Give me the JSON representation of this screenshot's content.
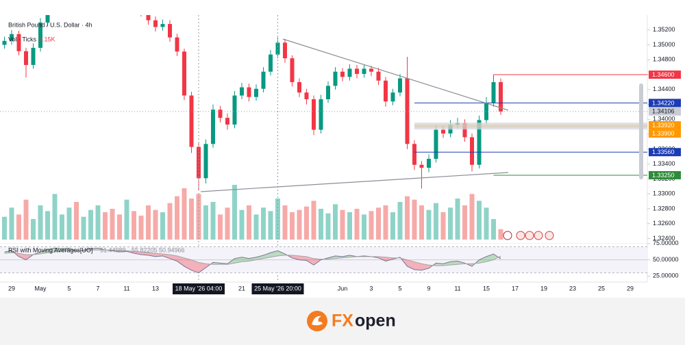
{
  "chart_data": {
    "type": "candlestick",
    "title": "British Pound / U.S. Dollar · 4h",
    "up_color": "#089981",
    "down_color": "#f23645",
    "categories": [
      null,
      "29",
      null,
      null,
      null,
      "May",
      null,
      null,
      null,
      "5",
      null,
      null,
      null,
      "7",
      null,
      null,
      null,
      "11",
      null,
      null,
      null,
      "13",
      null,
      null,
      null,
      null,
      null,
      {
        "label": "18 May '26 04:00",
        "highlight": true
      },
      null,
      null,
      null,
      null,
      null,
      "21",
      null,
      null,
      null,
      null,
      {
        "label": "25 May '26 20:00",
        "highlight": true
      },
      null,
      null,
      null,
      null,
      null,
      null,
      null,
      null,
      "Jun",
      null,
      null,
      null,
      "3",
      null,
      null,
      null,
      "5",
      null,
      null,
      null,
      "9",
      null,
      null,
      null,
      "11",
      null,
      null,
      null,
      "15",
      null,
      null,
      null,
      "17",
      null,
      null,
      null,
      "19",
      null,
      null,
      null,
      "23",
      null,
      null,
      null,
      "25",
      null,
      null,
      null,
      "29",
      null
    ],
    "open": [
      1.35,
      1.35053,
      1.35145,
      1.34915,
      1.3473,
      1.3496,
      1.353,
      1.355,
      1.3565,
      1.357,
      1.3575,
      1.356,
      1.357,
      1.3585,
      1.359,
      1.358,
      1.3575,
      1.3565,
      1.357,
      1.3555,
      1.3545,
      1.3533,
      1.3524,
      1.3528,
      1.351,
      1.3491,
      1.3432,
      1.3363,
      1.3321,
      1.3367,
      1.3413,
      1.3402,
      1.3393,
      1.3432,
      1.3443,
      1.343,
      1.3441,
      1.3464,
      1.3487,
      1.3503,
      1.3482,
      1.345,
      1.3436,
      1.3427,
      1.3386,
      1.3427,
      1.3445,
      1.3464,
      1.3457,
      1.3468,
      1.3461,
      1.3468,
      1.3464,
      1.3452,
      1.3424,
      1.3436,
      1.3455,
      1.3367,
      1.3339,
      1.3335,
      1.3347,
      1.3386,
      1.3381,
      1.3393,
      1.3395,
      1.3376,
      1.3339,
      1.3399,
      1.3422,
      1.345,
      null,
      null,
      null,
      null,
      null,
      null,
      null,
      null,
      null,
      null,
      null,
      null,
      null,
      null,
      null,
      null,
      null,
      null,
      null
    ],
    "high": [
      1.3511,
      1.352,
      1.3519,
      1.3496,
      1.3502,
      1.3536,
      1.3556,
      1.3571,
      1.3576,
      1.3581,
      1.358,
      1.3576,
      1.3591,
      1.3596,
      1.3595,
      1.3586,
      1.358,
      1.3576,
      1.3575,
      1.356,
      1.355,
      1.3538,
      1.3534,
      1.3533,
      1.3515,
      1.3495,
      1.3437,
      1.3368,
      1.3373,
      1.342,
      1.3418,
      1.3408,
      1.3438,
      1.3449,
      1.3448,
      1.3447,
      1.347,
      1.3493,
      1.351,
      1.3508,
      1.3486,
      1.3455,
      1.3441,
      1.3432,
      1.3433,
      1.3451,
      1.347,
      1.3469,
      1.3474,
      1.3473,
      1.3473,
      1.3472,
      1.3469,
      1.3457,
      1.3441,
      1.3461,
      1.3484,
      1.3372,
      1.3344,
      1.3353,
      1.3392,
      1.3391,
      1.3399,
      1.3402,
      1.34,
      1.3381,
      1.3405,
      1.343,
      1.346,
      1.3455,
      null,
      null,
      null,
      null,
      null,
      null,
      null,
      null,
      null,
      null,
      null,
      null,
      null,
      null,
      null,
      null,
      null,
      null,
      null
    ],
    "low": [
      1.3495,
      1.35,
      1.3486,
      1.3456,
      1.3468,
      1.3491,
      1.3525,
      1.3545,
      1.356,
      1.3565,
      1.3555,
      1.3555,
      1.3565,
      1.358,
      1.3575,
      1.357,
      1.356,
      1.356,
      1.355,
      1.3538,
      1.3527,
      1.3518,
      1.3519,
      1.3504,
      1.3485,
      1.3426,
      1.3355,
      1.3305,
      1.3314,
      1.3362,
      1.3396,
      1.3386,
      1.3388,
      1.3427,
      1.3424,
      1.3425,
      1.3436,
      1.3459,
      1.3482,
      1.3476,
      1.3444,
      1.343,
      1.342,
      1.3379,
      1.3381,
      1.3422,
      1.344,
      1.3451,
      1.3452,
      1.3455,
      1.3456,
      1.3458,
      1.3446,
      1.3417,
      1.3419,
      1.3431,
      1.336,
      1.3332,
      1.3307,
      1.3329,
      1.3342,
      1.3375,
      1.3376,
      1.3388,
      1.337,
      1.333,
      1.3334,
      1.3394,
      1.3417,
      1.3406,
      null,
      null,
      null,
      null,
      null,
      null,
      null,
      null,
      null,
      null,
      null,
      null,
      null,
      null,
      null,
      null,
      null,
      null,
      null
    ],
    "close": [
      1.35053,
      1.35145,
      1.34915,
      1.3473,
      1.3496,
      1.353,
      1.355,
      1.3565,
      1.357,
      1.3575,
      1.356,
      1.357,
      1.3585,
      1.359,
      1.358,
      1.3575,
      1.3565,
      1.357,
      1.3555,
      1.3545,
      1.3533,
      1.3524,
      1.3528,
      1.351,
      1.3491,
      1.3432,
      1.3363,
      1.3321,
      1.3367,
      1.3413,
      1.3402,
      1.3393,
      1.3432,
      1.3443,
      1.343,
      1.3441,
      1.3464,
      1.3487,
      1.3503,
      1.3482,
      1.345,
      1.3436,
      1.3427,
      1.3386,
      1.3427,
      1.3445,
      1.3464,
      1.3457,
      1.3468,
      1.3461,
      1.3468,
      1.3464,
      1.3452,
      1.3424,
      1.3436,
      1.3455,
      1.3367,
      1.3339,
      1.3335,
      1.3347,
      1.3386,
      1.3381,
      1.3393,
      1.3395,
      1.3376,
      1.3339,
      1.3399,
      1.3422,
      1.345,
      1.34106,
      null,
      null,
      null,
      null,
      null,
      null,
      null,
      null,
      null,
      null,
      null,
      null,
      null,
      null,
      null,
      null,
      null,
      null,
      null
    ],
    "ylim": [
      1.3234,
      1.354
    ],
    "yticks": [
      {
        "value": 1.352,
        "label": "1.35200"
      },
      {
        "value": 1.35,
        "label": "1.35000"
      },
      {
        "value": 1.348,
        "label": "1.34800"
      },
      {
        "value": 1.346,
        "label": "1.34600"
      },
      {
        "value": 1.344,
        "label": "1.34400"
      },
      {
        "value": 1.342,
        "label": "1.34200"
      },
      {
        "value": 1.34,
        "label": "1.34000"
      },
      {
        "value": 1.338,
        "label": "1.33800"
      },
      {
        "value": 1.336,
        "label": "1.33600"
      },
      {
        "value": 1.334,
        "label": "1.33400"
      },
      {
        "value": 1.332,
        "label": "1.33200"
      },
      {
        "value": 1.33,
        "label": "1.33000"
      },
      {
        "value": 1.328,
        "label": "1.32800"
      },
      {
        "value": 1.326,
        "label": "1.32600"
      },
      {
        "value": 1.324,
        "label": "1.32400"
      }
    ],
    "current_price_color": "#c9ccd4",
    "levels": [
      {
        "value": 1.346,
        "label": "1.34600",
        "color": "#f23645",
        "from": 68
      },
      {
        "value": 1.3422,
        "label": "1.34220",
        "color": "#1a3bb3",
        "from": 57
      },
      {
        "value": 1.3392,
        "label": "1.33920",
        "color": "#ff9800",
        "from": 57
      },
      {
        "value": 1.339,
        "label": "1.33900",
        "color": "#ff9800",
        "from": 57
      },
      {
        "value": 1.3356,
        "label": "1.33560",
        "color": "#1a3bb3",
        "from": 57
      },
      {
        "value": 1.3325,
        "label": "1.33250",
        "color": "#2e8b3a",
        "from": 68
      }
    ],
    "volume": {
      "name": "Vol · Ticks",
      "last_label": "9.15K",
      "values": [
        20000,
        28000,
        22000,
        35000,
        18000,
        30000,
        25000,
        40000,
        22000,
        28000,
        33000,
        20000,
        26000,
        30000,
        24000,
        27000,
        22000,
        35000,
        25000,
        21000,
        30000,
        26000,
        24000,
        32000,
        38000,
        45000,
        36000,
        40000,
        30000,
        33000,
        22000,
        28000,
        48000,
        26000,
        30000,
        22000,
        28000,
        25000,
        36000,
        30000,
        24000,
        26000,
        29000,
        34000,
        27000,
        23000,
        31000,
        26000,
        24000,
        27000,
        22000,
        25000,
        28000,
        30000,
        24000,
        33000,
        38000,
        35000,
        30000,
        26000,
        32000,
        24000,
        28000,
        36000,
        30000,
        40000,
        34000,
        28000,
        18000,
        9150,
        null,
        null,
        null,
        null,
        null,
        null,
        null,
        null,
        null,
        null,
        null,
        null,
        null,
        null,
        null,
        null,
        null,
        null,
        null
      ],
      "ylim": [
        0,
        60000
      ],
      "up_color": "#8fd3c8",
      "down_color": "#f6aaa8"
    },
    "rsi": {
      "title": "RSI with Moving Averages[UO]",
      "extra_value": 50.94966,
      "ylim": [
        18,
        79
      ],
      "yticks": [
        {
          "value": 75,
          "label": "75.00000"
        },
        {
          "value": 50,
          "label": "50.00000"
        },
        {
          "value": 25,
          "label": "25.00000"
        }
      ],
      "bands": [
        30,
        70
      ],
      "midline": 50,
      "up_fill": "#4caf50",
      "down_fill": "#f23645",
      "series": [
        {
          "color": "#7a7394",
          "values": [
            62,
            64,
            55,
            50,
            58,
            62,
            66,
            68,
            67,
            68,
            63,
            65,
            67,
            68,
            65,
            64,
            62,
            63,
            60,
            58,
            57,
            55,
            56,
            52,
            48,
            40,
            34,
            30,
            38,
            46,
            45,
            44,
            52,
            54,
            52,
            54,
            57,
            61,
            64,
            59,
            53,
            50,
            49,
            42,
            50,
            53,
            56,
            55,
            57,
            55,
            56,
            55,
            53,
            48,
            51,
            54,
            40,
            35,
            34,
            37,
            45,
            44,
            47,
            48,
            45,
            40,
            50,
            55,
            59,
            51.44989,
            null,
            null,
            null,
            null,
            null,
            null,
            null,
            null,
            null,
            null,
            null,
            null,
            null,
            null,
            null,
            null,
            null,
            null,
            null
          ]
        },
        {
          "color": "#a5a5a5",
          "values": [
            60,
            61,
            60,
            58,
            58,
            59,
            61,
            62,
            63,
            64,
            64,
            64,
            65,
            65,
            65,
            65,
            64,
            64,
            63,
            62,
            61,
            60,
            59,
            58,
            56,
            53,
            50,
            46,
            44,
            43,
            43,
            43,
            45,
            47,
            48,
            50,
            52,
            54,
            56,
            57,
            57,
            56,
            55,
            52,
            51,
            51,
            52,
            53,
            54,
            55,
            55,
            55,
            55,
            54,
            53,
            53,
            50,
            47,
            44,
            42,
            41,
            41,
            42,
            43,
            44,
            44,
            45,
            47,
            50,
            55.82205,
            null,
            null,
            null,
            null,
            null,
            null,
            null,
            null,
            null,
            null,
            null,
            null,
            null,
            null,
            null,
            null,
            null,
            null,
            null
          ]
        }
      ]
    }
  },
  "brand": {
    "prefix": "FX",
    "suffix": "open"
  }
}
